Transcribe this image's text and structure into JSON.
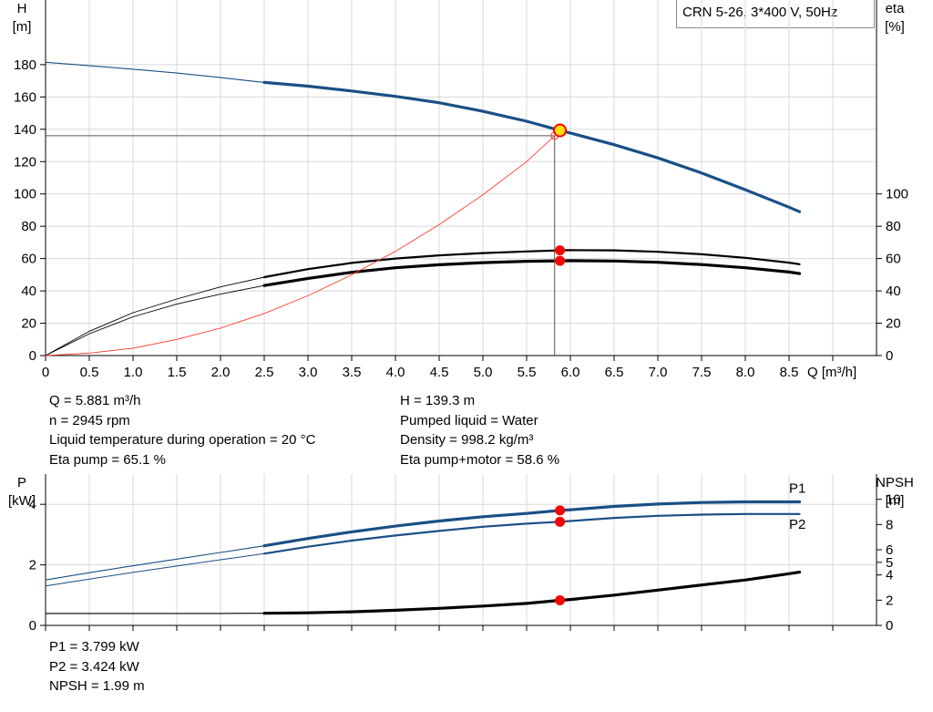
{
  "title": "CRN 5-26, 3*400 V, 50Hz",
  "chart_data": [
    {
      "name": "curve_chart",
      "type": "line",
      "xlabel": "Q [m³/h]",
      "xlim": [
        0,
        9.5
      ],
      "x_ticks": [
        0,
        0.5,
        1.0,
        1.5,
        2.0,
        2.5,
        3.0,
        3.5,
        4.0,
        4.5,
        5.0,
        5.5,
        6.0,
        6.5,
        7.0,
        7.5,
        8.0,
        8.5
      ],
      "x_tick_labels": [
        "0",
        "0.5",
        "1.0",
        "1.5",
        "2.0",
        "2.5",
        "3.0",
        "3.5",
        "4.0",
        "4.5",
        "5.0",
        "5.5",
        "6.0",
        "6.5",
        "7.0",
        "7.5",
        "8.0",
        "8.5"
      ],
      "y_left": {
        "label_line1": "H",
        "label_line2": "[m]",
        "lim": [
          0,
          220
        ],
        "ticks": [
          0,
          20,
          40,
          60,
          80,
          100,
          120,
          140,
          160,
          180
        ]
      },
      "y_right": {
        "label_line1": "eta",
        "label_line2": "[%]",
        "lim": [
          0,
          220
        ],
        "ticks": [
          0,
          20,
          40,
          60,
          80,
          100
        ]
      },
      "grid": true,
      "series": [
        {
          "key": "H",
          "axis": "left",
          "color": "#1a4f86",
          "width": 3.2,
          "thin_width": 1.1,
          "thin_until": 2.5,
          "x": [
            0,
            0.5,
            1.0,
            1.5,
            2.0,
            2.5,
            3.0,
            3.5,
            4.0,
            4.5,
            5.0,
            5.5,
            5.881,
            6.0,
            6.5,
            7.0,
            7.5,
            8.0,
            8.5,
            8.62
          ],
          "y": [
            181.5,
            179.3,
            177.2,
            174.8,
            172.0,
            169.0,
            166.7,
            163.7,
            160.4,
            156.4,
            151.1,
            145.0,
            139.3,
            137.7,
            130.5,
            122.3,
            113.0,
            102.6,
            91.8,
            89.0
          ]
        },
        {
          "key": "Eta pump",
          "axis": "right",
          "color": "#000000",
          "width": 2.2,
          "thin_width": 0.9,
          "thin_until": 2.5,
          "x": [
            0,
            0.5,
            1.0,
            1.5,
            2.0,
            2.5,
            3.0,
            3.5,
            4.0,
            4.5,
            5.0,
            5.5,
            5.881,
            6.0,
            6.5,
            7.0,
            7.5,
            8.0,
            8.5,
            8.62
          ],
          "y": [
            0,
            15.0,
            26.5,
            35.0,
            42.5,
            48.5,
            53.5,
            57.3,
            60.0,
            62.0,
            63.4,
            64.4,
            65.1,
            65.2,
            65.1,
            64.2,
            62.7,
            60.5,
            57.5,
            56.5
          ]
        },
        {
          "key": "Eta pump+motor",
          "axis": "right",
          "color": "#000000",
          "width": 3.2,
          "thin_width": 0.9,
          "thin_until": 2.5,
          "x": [
            0,
            0.5,
            1.0,
            1.5,
            2.0,
            2.5,
            3.0,
            3.5,
            4.0,
            4.5,
            5.0,
            5.5,
            5.881,
            6.0,
            6.5,
            7.0,
            7.5,
            8.0,
            8.5,
            8.62
          ],
          "y": [
            0,
            13.5,
            24.0,
            31.8,
            38.0,
            43.3,
            47.7,
            51.5,
            54.3,
            56.2,
            57.5,
            58.3,
            58.6,
            58.7,
            58.5,
            57.7,
            56.3,
            54.3,
            51.7,
            50.7
          ]
        },
        {
          "key": "System curve",
          "axis": "left",
          "color": "#ff3b30",
          "width": 0.9,
          "x": [
            0,
            0.5,
            1.0,
            1.5,
            2.0,
            2.5,
            3.0,
            3.5,
            4.0,
            4.5,
            5.0,
            5.5,
            5.82
          ],
          "y": [
            0,
            1.5,
            4.5,
            10.0,
            17.0,
            26.0,
            37.0,
            50.0,
            64.5,
            81.0,
            99.5,
            120.0,
            136.0
          ]
        }
      ],
      "duty_point": {
        "x": 5.881,
        "H": 139.3,
        "eta_pump": 65.1,
        "eta_pump_motor": 58.6
      },
      "guide_point": {
        "x": 5.82,
        "H": 136.0
      }
    },
    {
      "name": "power_npsh_chart",
      "type": "line",
      "xlim": [
        0,
        9.5
      ],
      "y_left": {
        "label_line1": "P",
        "label_line2": "[kW]",
        "lim": [
          0,
          5.0
        ],
        "ticks": [
          0,
          2,
          4
        ]
      },
      "y_right": {
        "label_line1": "NPSH",
        "label_line2": "[m]",
        "lim": [
          0,
          12.0
        ],
        "ticks": [
          0,
          2,
          4,
          5,
          6,
          8,
          10
        ]
      },
      "grid": true,
      "series": [
        {
          "key": "P1",
          "axis": "left",
          "label": "P1",
          "color": "#1a4f86",
          "width": 3.2,
          "thin_width": 1.1,
          "thin_until": 2.5,
          "x": [
            0,
            0.5,
            1.0,
            1.5,
            2.0,
            2.5,
            3.0,
            3.5,
            4.0,
            4.5,
            5.0,
            5.5,
            5.881,
            6.0,
            6.5,
            7.0,
            7.5,
            8.0,
            8.5,
            8.62
          ],
          "y": [
            1.5,
            1.74,
            1.97,
            2.19,
            2.41,
            2.63,
            2.87,
            3.09,
            3.28,
            3.45,
            3.59,
            3.7,
            3.799,
            3.82,
            3.93,
            4.01,
            4.06,
            4.08,
            4.08,
            4.08
          ]
        },
        {
          "key": "P2",
          "axis": "left",
          "label": "P2",
          "color": "#1a4f86",
          "width": 2.2,
          "thin_width": 1.0,
          "thin_until": 2.5,
          "x": [
            0,
            0.5,
            1.0,
            1.5,
            2.0,
            2.5,
            3.0,
            3.5,
            4.0,
            4.5,
            5.0,
            5.5,
            5.881,
            6.0,
            6.5,
            7.0,
            7.5,
            8.0,
            8.5,
            8.62
          ],
          "y": [
            1.3,
            1.53,
            1.75,
            1.96,
            2.17,
            2.37,
            2.6,
            2.8,
            2.97,
            3.12,
            3.26,
            3.36,
            3.424,
            3.45,
            3.55,
            3.62,
            3.66,
            3.68,
            3.68,
            3.68
          ]
        },
        {
          "key": "NPSH",
          "axis": "right",
          "color": "#000000",
          "width": 3.2,
          "thin_width": 1.1,
          "thin_until": 2.5,
          "x": [
            0,
            0.5,
            1.0,
            1.5,
            2.0,
            2.5,
            3.0,
            3.5,
            4.0,
            4.5,
            5.0,
            5.5,
            5.881,
            6.0,
            6.5,
            7.0,
            7.5,
            8.0,
            8.5,
            8.62
          ],
          "y": [
            0.95,
            0.95,
            0.95,
            0.95,
            0.95,
            0.96,
            1.0,
            1.08,
            1.2,
            1.35,
            1.53,
            1.74,
            1.99,
            2.05,
            2.4,
            2.8,
            3.2,
            3.6,
            4.1,
            4.22
          ]
        }
      ],
      "duty_point": {
        "x": 5.881,
        "P1": 3.799,
        "P2": 3.424,
        "NPSH": 1.99
      }
    }
  ],
  "info_left": [
    "Q = 5.881 m³/h",
    "n = 2945 rpm",
    "Liquid temperature during operation = 20 °C",
    "Eta pump = 65.1 %"
  ],
  "info_right": [
    "H = 139.3 m",
    "Pumped liquid = Water",
    "Density = 998.2 kg/m³",
    "Eta pump+motor = 58.6 %"
  ],
  "info_bottom": [
    "P1 = 3.799 kW",
    "P2 = 3.424 kW",
    "NPSH = 1.99 m"
  ],
  "colors": {
    "curve_blue": "#1a4f86",
    "duty_red": "#ff0000",
    "duty_yellow": "#ffe000",
    "grid": "#d8d8d8",
    "system_red": "#ff3b30"
  }
}
